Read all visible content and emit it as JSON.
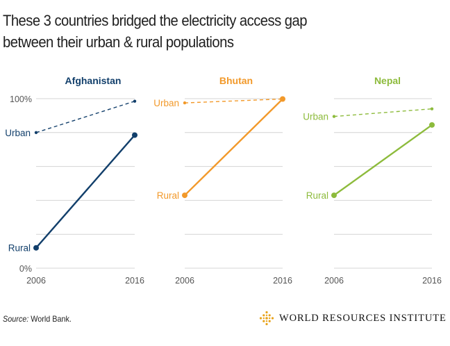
{
  "title": "These 3 countries bridged the electricity access gap between their urban & rural populations",
  "source_label": "Source:",
  "source_text": "World Bank.",
  "logo_text": "WORLD RESOURCES INSTITUTE",
  "colors": {
    "afghanistan": "#123f6b",
    "bhutan": "#f2992a",
    "nepal": "#8dbb3c",
    "grid": "#d4d4d4",
    "axis_text": "#555555"
  },
  "chart_data": [
    {
      "type": "line",
      "title": "Afghanistan",
      "color": "#123f6b",
      "x": [
        "2006",
        "2016"
      ],
      "ylim": [
        0,
        100
      ],
      "yticks": [
        "0%",
        "100%"
      ],
      "grid": true,
      "series": [
        {
          "name": "Urban",
          "values": [
            80,
            98.5
          ],
          "style": "dashed"
        },
        {
          "name": "Rural",
          "values": [
            12,
            78.5
          ],
          "style": "solid"
        }
      ]
    },
    {
      "type": "line",
      "title": "Bhutan",
      "color": "#f2992a",
      "x": [
        "2006",
        "2016"
      ],
      "ylim": [
        0,
        100
      ],
      "grid": true,
      "series": [
        {
          "name": "Urban",
          "values": [
            97.5,
            99.8
          ],
          "style": "dashed"
        },
        {
          "name": "Rural",
          "values": [
            43,
            99.8
          ],
          "style": "solid"
        }
      ]
    },
    {
      "type": "line",
      "title": "Nepal",
      "color": "#8dbb3c",
      "x": [
        "2006",
        "2016"
      ],
      "ylim": [
        0,
        100
      ],
      "grid": true,
      "series": [
        {
          "name": "Urban",
          "values": [
            89.5,
            94
          ],
          "style": "dashed"
        },
        {
          "name": "Rural",
          "values": [
            43,
            84.5
          ],
          "style": "solid"
        }
      ]
    }
  ]
}
